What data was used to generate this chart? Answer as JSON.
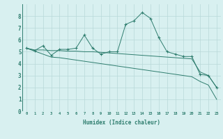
{
  "x": [
    0,
    1,
    2,
    3,
    4,
    5,
    6,
    7,
    8,
    9,
    10,
    11,
    12,
    13,
    14,
    15,
    16,
    17,
    18,
    19,
    20,
    21,
    22,
    23
  ],
  "line1": [
    5.3,
    5.1,
    5.5,
    4.7,
    5.2,
    5.2,
    5.3,
    6.4,
    5.3,
    4.8,
    5.0,
    5.0,
    7.3,
    7.6,
    8.3,
    7.8,
    6.2,
    5.0,
    4.8,
    4.6,
    4.6,
    3.1,
    3.0,
    2.0
  ],
  "line2_trend": [
    5.3,
    5.15,
    5.15,
    5.1,
    5.1,
    5.05,
    5.05,
    5.0,
    5.0,
    4.95,
    4.9,
    4.85,
    4.8,
    4.75,
    4.7,
    4.65,
    4.6,
    4.55,
    4.5,
    4.45,
    4.4,
    3.3,
    3.0,
    2.0
  ],
  "line3_trend": [
    5.3,
    5.05,
    4.8,
    4.55,
    4.5,
    4.4,
    4.3,
    4.2,
    4.1,
    4.0,
    3.9,
    3.8,
    3.7,
    3.6,
    3.5,
    3.4,
    3.3,
    3.2,
    3.1,
    3.0,
    2.9,
    2.5,
    2.2,
    1.0
  ],
  "color": "#2e7d6e",
  "bg_color": "#d8f0f0",
  "grid_color": "#b8d8d8",
  "xlabel": "Humidex (Indice chaleur)",
  "ylim": [
    0,
    9
  ],
  "xlim": [
    -0.5,
    23.5
  ]
}
